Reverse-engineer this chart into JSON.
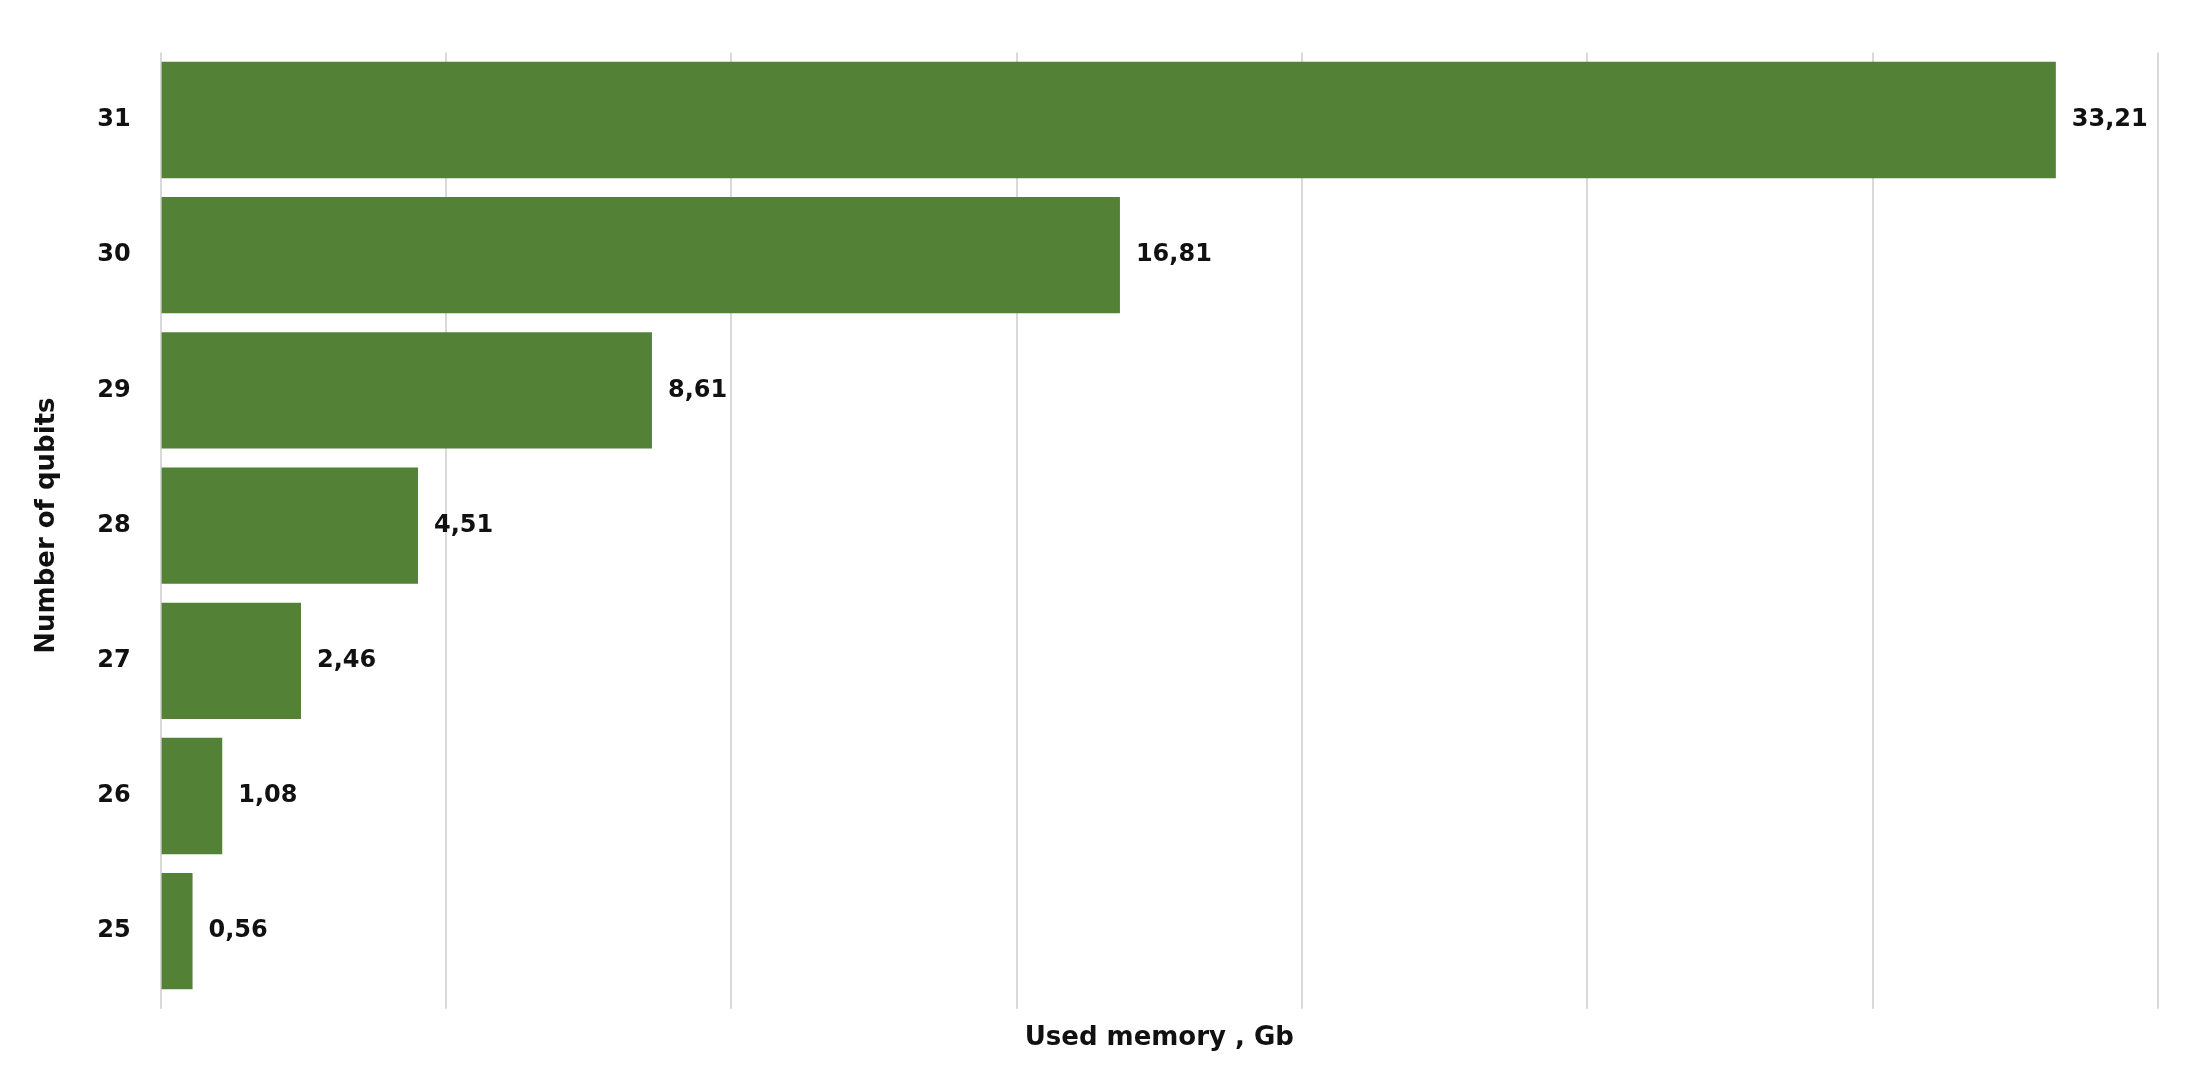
{
  "chart_data": {
    "type": "bar",
    "orientation": "horizontal",
    "xlabel": "Used memory , Gb",
    "ylabel": "Number of qubits",
    "categories": [
      "31",
      "30",
      "29",
      "28",
      "27",
      "26",
      "25"
    ],
    "values": [
      33.21,
      16.81,
      8.61,
      4.51,
      2.46,
      1.08,
      0.56
    ],
    "value_labels": [
      "33,21",
      "16,81",
      "8,61",
      "4,51",
      "2,46",
      "1,08",
      "0,56"
    ],
    "color": "#538135",
    "xlim": [
      0,
      35
    ],
    "xticks": [
      {
        "value": 0,
        "label": null
      },
      {
        "value": 5,
        "label": null
      },
      {
        "value": 10,
        "label": null
      },
      {
        "value": 15,
        "label": null
      },
      {
        "value": 20,
        "label": null
      },
      {
        "value": 25,
        "label": null
      },
      {
        "value": 30,
        "label": null
      },
      {
        "value": 35,
        "label": null
      }
    ],
    "grid": "x",
    "legend": false,
    "tick_labels": "y"
  }
}
